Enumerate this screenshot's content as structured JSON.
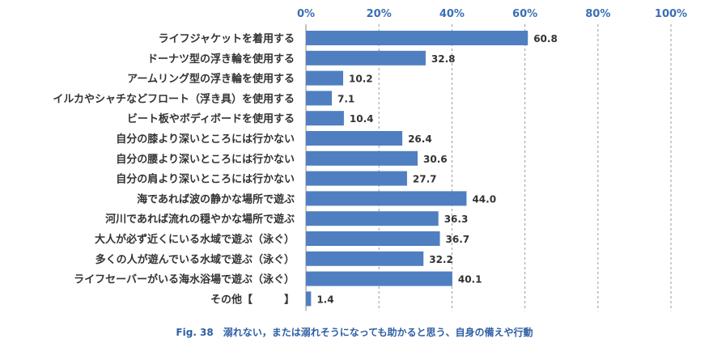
{
  "chart_data": {
    "type": "bar",
    "orientation": "horizontal",
    "categories": [
      "ライフジャケットを着用する",
      "ドーナツ型の浮き輪を使用する",
      "アームリング型の浮き輪を使用する",
      "イルカやシャチなどフロート（浮き具）を使用する",
      "ビート板やボディボードを使用する",
      "自分の膝より深いところには行かない",
      "自分の腰より深いところには行かない",
      "自分の肩より深いところには行かない",
      "海であれば波の静かな場所で遊ぶ",
      "河川であれば流れの穏やかな場所で遊ぶ",
      "大人が必ず近くにいる水域で遊ぶ（泳ぐ）",
      "多くの人が遊んでいる水域で遊ぶ（泳ぐ）",
      "ライフセーバーがいる海水浴場で遊ぶ（泳ぐ）",
      "その他【　　　】"
    ],
    "values": [
      60.8,
      32.8,
      10.2,
      7.1,
      10.4,
      26.4,
      30.6,
      27.7,
      44.0,
      36.3,
      36.7,
      32.2,
      40.1,
      1.4
    ],
    "value_labels": [
      "60.8",
      "32.8",
      "10.2",
      "7.1",
      "10.4",
      "26.4",
      "30.6",
      "27.7",
      "44.0",
      "36.3",
      "36.7",
      "32.2",
      "40.1",
      "1.4"
    ],
    "xlim": [
      0,
      100
    ],
    "ticks": [
      0,
      20,
      40,
      60,
      80,
      100
    ],
    "tick_labels": [
      "0%",
      "20%",
      "40%",
      "60%",
      "80%",
      "100%"
    ],
    "grid": true,
    "bar_color": "#4f7fc0",
    "tick_color": "#3a6fb4"
  },
  "caption": "Fig. 38　溺れない，または溺れそうになっても助かると思う、自身の備えや行動"
}
